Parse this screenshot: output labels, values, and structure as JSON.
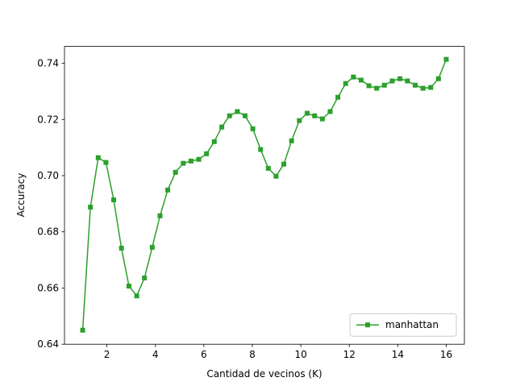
{
  "chart_data": {
    "type": "line",
    "xlabel": "Cantidad de vecinos (K)",
    "ylabel": "Accuracy",
    "x": [
      1.0,
      1.32,
      1.64,
      1.96,
      2.28,
      2.6,
      2.91,
      3.23,
      3.55,
      3.87,
      4.19,
      4.51,
      4.83,
      5.15,
      5.47,
      5.79,
      6.11,
      6.43,
      6.74,
      7.06,
      7.38,
      7.7,
      8.02,
      8.34,
      8.66,
      8.98,
      9.3,
      9.62,
      9.94,
      10.26,
      10.57,
      10.89,
      11.21,
      11.53,
      11.85,
      12.17,
      12.49,
      12.81,
      13.13,
      13.45,
      13.77,
      14.09,
      14.4,
      14.72,
      15.04,
      15.36,
      15.68,
      16.0
    ],
    "series": [
      {
        "name": "manhattan",
        "color": "#2ca02c",
        "marker": "square",
        "values": [
          0.645,
          0.6888,
          0.7064,
          0.7047,
          0.6914,
          0.6742,
          0.6607,
          0.6572,
          0.6636,
          0.6745,
          0.6857,
          0.6949,
          0.7012,
          0.7044,
          0.7052,
          0.7058,
          0.7078,
          0.7121,
          0.7173,
          0.7213,
          0.7228,
          0.7213,
          0.7167,
          0.7093,
          0.7026,
          0.6998,
          0.7041,
          0.7124,
          0.7196,
          0.7222,
          0.7213,
          0.7202,
          0.7228,
          0.7279,
          0.7328,
          0.7351,
          0.734,
          0.732,
          0.7311,
          0.7322,
          0.7337,
          0.7345,
          0.7337,
          0.7322,
          0.7311,
          0.7314,
          0.7345,
          0.7414
        ]
      }
    ],
    "xlim": [
      0.25,
      16.75
    ],
    "xticks": [
      2,
      4,
      6,
      8,
      10,
      12,
      14,
      16
    ],
    "ylim": [
      0.64,
      0.746
    ],
    "yticks": [
      0.64,
      0.66,
      0.68,
      {
        "value": 0.7,
        "label": "0.70"
      },
      0.72,
      0.74
    ],
    "grid": false,
    "legend": "lower right"
  }
}
